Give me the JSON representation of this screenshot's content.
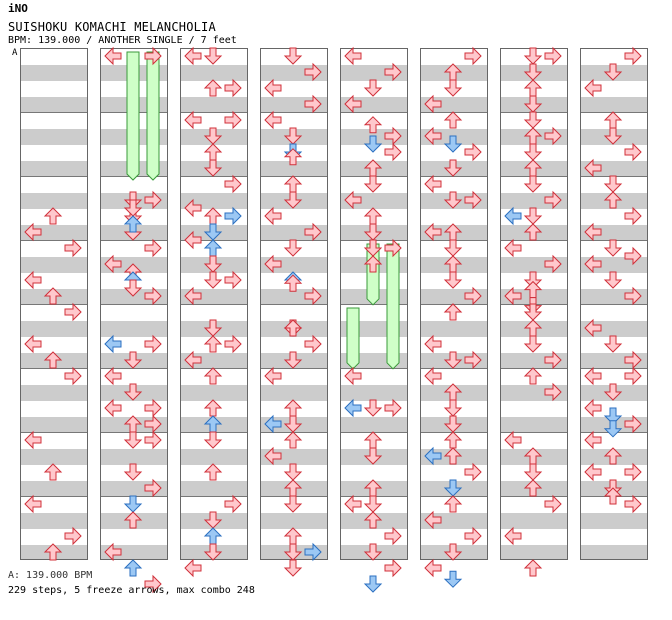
{
  "header": {
    "artist": "iNO",
    "title": "SUISHOKU KOMACHI MELANCHOLIA",
    "info": "BPM: 139.000 / ANOTHER SINGLE / 7 feet",
    "section_marker": "A"
  },
  "footer": {
    "bpm": "A: 139.000 BPM",
    "stats": "229 steps, 5 freeze arrows, max combo 248"
  },
  "colors": {
    "red_fill": "#ffc8cc",
    "red_stroke": "#d0303a",
    "blue_fill": "#9cc8f4",
    "blue_stroke": "#2b6fc0",
    "freeze_fill": "#cfffc8",
    "freeze_stroke": "#3a9a3a"
  },
  "columns": [
    {
      "arrows": [
        [
          "L",
          11,
          "r"
        ],
        [
          "U",
          10,
          "r"
        ],
        [
          "R",
          12,
          "r"
        ],
        [
          "L",
          14,
          "r"
        ],
        [
          "U",
          15,
          "r"
        ],
        [
          "R",
          16,
          "r"
        ],
        [
          "L",
          18,
          "r"
        ],
        [
          "U",
          19,
          "r"
        ],
        [
          "R",
          20,
          "r"
        ],
        [
          "L",
          24,
          "r"
        ],
        [
          "U",
          26,
          "r"
        ],
        [
          "L",
          28,
          "r"
        ],
        [
          "R",
          30,
          "r"
        ],
        [
          "U",
          31,
          "r"
        ]
      ]
    },
    {
      "freezes": [
        [
          1,
          0,
          8
        ],
        [
          2,
          0,
          8
        ]
      ],
      "arrows": [
        [
          "L",
          0,
          "r"
        ],
        [
          "R",
          0,
          "r"
        ],
        [
          "D",
          9,
          "r"
        ],
        [
          "R",
          9,
          "r"
        ],
        [
          "D",
          10,
          "r"
        ],
        [
          "D",
          11,
          "r"
        ],
        [
          "D",
          9.5,
          "r"
        ],
        [
          "U",
          10.5,
          "b"
        ],
        [
          "U",
          13.5,
          "r"
        ],
        [
          "R",
          12,
          "r"
        ],
        [
          "L",
          13,
          "r"
        ],
        [
          "U",
          14,
          "b"
        ],
        [
          "D",
          14.5,
          "r"
        ],
        [
          "R",
          15,
          "r"
        ],
        [
          "L",
          18,
          "b"
        ],
        [
          "R",
          18,
          "r"
        ],
        [
          "D",
          19,
          "r"
        ],
        [
          "L",
          20,
          "r"
        ],
        [
          "D",
          21,
          "r"
        ],
        [
          "L",
          22,
          "r"
        ],
        [
          "R",
          22,
          "r"
        ],
        [
          "U",
          23,
          "r"
        ],
        [
          "R",
          23,
          "r"
        ],
        [
          "D",
          24,
          "r"
        ],
        [
          "R",
          24,
          "r"
        ],
        [
          "D",
          26,
          "r"
        ],
        [
          "R",
          27,
          "r"
        ],
        [
          "D",
          28,
          "b"
        ],
        [
          "U",
          29,
          "r"
        ],
        [
          "L",
          31,
          "r"
        ],
        [
          "U",
          32,
          "b"
        ],
        [
          "R",
          33,
          "r"
        ]
      ]
    },
    {
      "arrows": [
        [
          "L",
          0,
          "r"
        ],
        [
          "D",
          0,
          "r"
        ],
        [
          "U",
          2,
          "r"
        ],
        [
          "R",
          2,
          "r"
        ],
        [
          "L",
          4,
          "r"
        ],
        [
          "R",
          4,
          "r"
        ],
        [
          "D",
          5,
          "r"
        ],
        [
          "U",
          6,
          "r"
        ],
        [
          "D",
          7,
          "r"
        ],
        [
          "R",
          8,
          "r"
        ],
        [
          "U",
          10,
          "r"
        ],
        [
          "L",
          9.5,
          "r"
        ],
        [
          "R",
          10,
          "b"
        ],
        [
          "D",
          11,
          "b"
        ],
        [
          "L",
          11.5,
          "r"
        ],
        [
          "U",
          12,
          "b"
        ],
        [
          "D",
          13,
          "r"
        ],
        [
          "D",
          14,
          "r"
        ],
        [
          "R",
          14,
          "r"
        ],
        [
          "L",
          15,
          "r"
        ],
        [
          "D",
          17,
          "r"
        ],
        [
          "U",
          18,
          "r"
        ],
        [
          "R",
          18,
          "r"
        ],
        [
          "L",
          19,
          "r"
        ],
        [
          "U",
          20,
          "r"
        ],
        [
          "U",
          22,
          "r"
        ],
        [
          "U",
          23,
          "b"
        ],
        [
          "D",
          24,
          "r"
        ],
        [
          "U",
          26,
          "r"
        ],
        [
          "R",
          28,
          "r"
        ],
        [
          "D",
          29,
          "r"
        ],
        [
          "U",
          30,
          "b"
        ],
        [
          "D",
          31,
          "r"
        ],
        [
          "L",
          32,
          "r"
        ]
      ]
    },
    {
      "arrows": [
        [
          "D",
          0,
          "r"
        ],
        [
          "R",
          1,
          "r"
        ],
        [
          "L",
          2,
          "r"
        ],
        [
          "R",
          3,
          "r"
        ],
        [
          "L",
          4,
          "r"
        ],
        [
          "D",
          5,
          "r"
        ],
        [
          "D",
          6,
          "b"
        ],
        [
          "U",
          6.3,
          "r"
        ],
        [
          "U",
          8,
          "r"
        ],
        [
          "D",
          9,
          "r"
        ],
        [
          "L",
          10,
          "r"
        ],
        [
          "R",
          11,
          "r"
        ],
        [
          "D",
          12,
          "r"
        ],
        [
          "L",
          13,
          "r"
        ],
        [
          "U",
          14,
          "b"
        ],
        [
          "U",
          14.2,
          "r"
        ],
        [
          "R",
          15,
          "r"
        ],
        [
          "D",
          17,
          "r"
        ],
        [
          "U",
          17,
          "r"
        ],
        [
          "R",
          18,
          "r"
        ],
        [
          "D",
          19,
          "r"
        ],
        [
          "L",
          20,
          "r"
        ],
        [
          "U",
          22,
          "r"
        ],
        [
          "L",
          23,
          "b"
        ],
        [
          "D",
          23,
          "r"
        ],
        [
          "U",
          24,
          "r"
        ],
        [
          "L",
          25,
          "r"
        ],
        [
          "D",
          26,
          "r"
        ],
        [
          "U",
          27,
          "r"
        ],
        [
          "D",
          28,
          "r"
        ],
        [
          "U",
          30,
          "r"
        ],
        [
          "D",
          31,
          "r"
        ],
        [
          "R",
          31,
          "b"
        ],
        [
          "D",
          32,
          "r"
        ]
      ]
    },
    {
      "freezes": [
        [
          1,
          12,
          15.8
        ],
        [
          0,
          16,
          19.8
        ],
        [
          2,
          12,
          19.8
        ]
      ],
      "arrows": [
        [
          "L",
          0,
          "r"
        ],
        [
          "R",
          1,
          "r"
        ],
        [
          "D",
          2,
          "r"
        ],
        [
          "L",
          3,
          "r"
        ],
        [
          "U",
          4.3,
          "r"
        ],
        [
          "R",
          5,
          "r"
        ],
        [
          "D",
          5.5,
          "b"
        ],
        [
          "R",
          6,
          "r"
        ],
        [
          "U",
          7,
          "r"
        ],
        [
          "D",
          8,
          "r"
        ],
        [
          "L",
          9,
          "r"
        ],
        [
          "U",
          10,
          "r"
        ],
        [
          "D",
          11,
          "r"
        ],
        [
          "D",
          12,
          "r"
        ],
        [
          "R",
          12,
          "r"
        ],
        [
          "U",
          13,
          "r"
        ],
        [
          "L",
          20,
          "r"
        ],
        [
          "L",
          22,
          "b"
        ],
        [
          "D",
          22,
          "r"
        ],
        [
          "R",
          22,
          "r"
        ],
        [
          "U",
          24,
          "r"
        ],
        [
          "D",
          25,
          "r"
        ],
        [
          "U",
          27,
          "r"
        ],
        [
          "L",
          28,
          "r"
        ],
        [
          "D",
          28,
          "r"
        ],
        [
          "U",
          29,
          "r"
        ],
        [
          "R",
          30,
          "r"
        ],
        [
          "D",
          31,
          "r"
        ],
        [
          "R",
          32,
          "r"
        ],
        [
          "D",
          33,
          "b"
        ]
      ]
    },
    {
      "arrows": [
        [
          "R",
          0,
          "r"
        ],
        [
          "U",
          1,
          "r"
        ],
        [
          "D",
          2,
          "r"
        ],
        [
          "L",
          3,
          "r"
        ],
        [
          "U",
          4,
          "r"
        ],
        [
          "L",
          5,
          "r"
        ],
        [
          "D",
          5.5,
          "b"
        ],
        [
          "R",
          6,
          "r"
        ],
        [
          "D",
          7,
          "r"
        ],
        [
          "L",
          8,
          "r"
        ],
        [
          "D",
          9,
          "r"
        ],
        [
          "R",
          9,
          "r"
        ],
        [
          "U",
          11,
          "r"
        ],
        [
          "L",
          11,
          "r"
        ],
        [
          "D",
          12,
          "r"
        ],
        [
          "U",
          13,
          "r"
        ],
        [
          "D",
          14,
          "r"
        ],
        [
          "R",
          15,
          "r"
        ],
        [
          "U",
          16,
          "r"
        ],
        [
          "U",
          16,
          "r"
        ],
        [
          "L",
          18,
          "r"
        ],
        [
          "D",
          19,
          "r"
        ],
        [
          "R",
          19,
          "r"
        ],
        [
          "L",
          20,
          "r"
        ],
        [
          "U",
          21,
          "r"
        ],
        [
          "D",
          22,
          "r"
        ],
        [
          "D",
          23,
          "r"
        ],
        [
          "U",
          24,
          "r"
        ],
        [
          "L",
          25,
          "b"
        ],
        [
          "U",
          25,
          "r"
        ],
        [
          "R",
          26,
          "r"
        ],
        [
          "D",
          27,
          "b"
        ],
        [
          "U",
          28,
          "r"
        ],
        [
          "L",
          29,
          "r"
        ],
        [
          "R",
          30,
          "r"
        ],
        [
          "D",
          31,
          "r"
        ],
        [
          "L",
          32,
          "r"
        ],
        [
          "D",
          32.7,
          "b"
        ]
      ]
    },
    {
      "arrows": [
        [
          "D",
          0,
          "r"
        ],
        [
          "R",
          0,
          "r"
        ],
        [
          "D",
          1,
          "r"
        ],
        [
          "U",
          2,
          "r"
        ],
        [
          "D",
          3,
          "r"
        ],
        [
          "D",
          4,
          "r"
        ],
        [
          "R",
          5,
          "r"
        ],
        [
          "U",
          5,
          "r"
        ],
        [
          "D",
          6,
          "r"
        ],
        [
          "U",
          7,
          "r"
        ],
        [
          "D",
          8,
          "r"
        ],
        [
          "R",
          9,
          "r"
        ],
        [
          "L",
          10,
          "b"
        ],
        [
          "D",
          10,
          "r"
        ],
        [
          "U",
          11,
          "r"
        ],
        [
          "L",
          12,
          "r"
        ],
        [
          "R",
          13,
          "r"
        ],
        [
          "D",
          14,
          "r"
        ],
        [
          "L",
          15,
          "r"
        ],
        [
          "U",
          14.6,
          "r"
        ],
        [
          "D",
          15.6,
          "r"
        ],
        [
          "D",
          16,
          "r"
        ],
        [
          "U",
          17,
          "r"
        ],
        [
          "D",
          18,
          "r"
        ],
        [
          "R",
          19,
          "r"
        ],
        [
          "U",
          20,
          "r"
        ],
        [
          "R",
          21,
          "r"
        ],
        [
          "L",
          24,
          "r"
        ],
        [
          "U",
          25,
          "r"
        ],
        [
          "D",
          26,
          "r"
        ],
        [
          "U",
          27,
          "r"
        ],
        [
          "R",
          28,
          "r"
        ],
        [
          "L",
          30,
          "r"
        ],
        [
          "U",
          32,
          "r"
        ]
      ]
    },
    {
      "arrows": [
        [
          "R",
          0,
          "r"
        ],
        [
          "D",
          1,
          "r"
        ],
        [
          "L",
          2,
          "r"
        ],
        [
          "U",
          4,
          "r"
        ],
        [
          "D",
          5,
          "r"
        ],
        [
          "R",
          6,
          "r"
        ],
        [
          "L",
          7,
          "r"
        ],
        [
          "D",
          8,
          "r"
        ],
        [
          "U",
          9,
          "r"
        ],
        [
          "R",
          10,
          "r"
        ],
        [
          "L",
          11,
          "r"
        ],
        [
          "D",
          12,
          "r"
        ],
        [
          "R",
          12.5,
          "r"
        ],
        [
          "L",
          13,
          "r"
        ],
        [
          "D",
          14,
          "r"
        ],
        [
          "R",
          15,
          "r"
        ],
        [
          "L",
          17,
          "r"
        ],
        [
          "D",
          18,
          "r"
        ],
        [
          "R",
          19,
          "r"
        ],
        [
          "L",
          20,
          "r"
        ],
        [
          "R",
          20,
          "r"
        ],
        [
          "D",
          21,
          "r"
        ],
        [
          "L",
          22,
          "r"
        ],
        [
          "D",
          22.5,
          "b"
        ],
        [
          "R",
          23,
          "r"
        ],
        [
          "D",
          23.3,
          "b"
        ],
        [
          "L",
          24,
          "r"
        ],
        [
          "U",
          25,
          "r"
        ],
        [
          "L",
          26,
          "r"
        ],
        [
          "R",
          26,
          "r"
        ],
        [
          "D",
          27,
          "r"
        ],
        [
          "U",
          27.5,
          "r"
        ],
        [
          "R",
          28,
          "r"
        ]
      ]
    }
  ]
}
